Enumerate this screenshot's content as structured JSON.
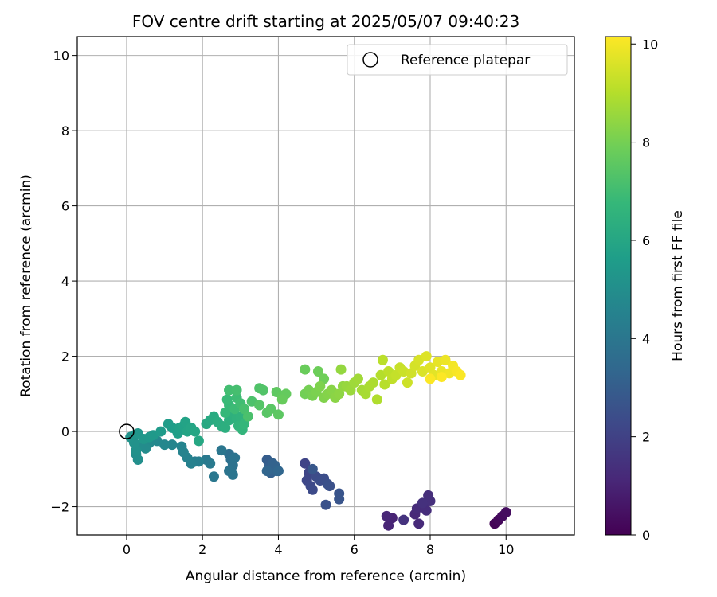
{
  "chart_data": {
    "type": "scatter",
    "title": "FOV centre drift starting at 2025/05/07 09:40:23",
    "xlabel": "Angular distance from reference (arcmin)",
    "ylabel": "Rotation from reference (arcmin)",
    "xlim": [
      -1.3,
      11.8
    ],
    "ylim": [
      -2.75,
      10.5
    ],
    "xticks": [
      0,
      2,
      4,
      6,
      8,
      10
    ],
    "xtick_labels": [
      "0",
      "2",
      "4",
      "6",
      "8",
      "10"
    ],
    "yticks": [
      -2,
      0,
      2,
      4,
      6,
      8,
      10
    ],
    "ytick_labels": [
      "−2",
      "0",
      "2",
      "4",
      "6",
      "8",
      "10"
    ],
    "grid": true,
    "legend": {
      "position": "top-right",
      "entries": [
        "Reference platepar"
      ]
    },
    "reference_point": {
      "x": 0,
      "y": 0,
      "label": "Reference platepar"
    },
    "colorbar": {
      "label": "Hours from first FF file",
      "colormap": "viridis",
      "range": [
        0,
        10.15
      ],
      "ticks": [
        0,
        2,
        4,
        6,
        8,
        10
      ],
      "tick_labels": [
        "0",
        "2",
        "4",
        "6",
        "8",
        "10"
      ]
    },
    "colormap_stops": [
      "#440154",
      "#482878",
      "#3e4989",
      "#31688e",
      "#26828e",
      "#1f9e89",
      "#35b779",
      "#6ece58",
      "#b5de2b",
      "#fde725"
    ],
    "points": [
      [
        9.7,
        -2.45,
        0.1
      ],
      [
        9.8,
        -2.35,
        0.2
      ],
      [
        9.9,
        -2.25,
        0.3
      ],
      [
        10.0,
        -2.15,
        0.35
      ],
      [
        7.0,
        -2.3,
        1.0
      ],
      [
        6.9,
        -2.5,
        1.05
      ],
      [
        6.85,
        -2.25,
        1.1
      ],
      [
        7.6,
        -2.2,
        1.15
      ],
      [
        7.7,
        -2.45,
        1.2
      ],
      [
        7.65,
        -2.05,
        1.25
      ],
      [
        7.9,
        -2.1,
        1.3
      ],
      [
        7.95,
        -1.7,
        1.35
      ],
      [
        8.0,
        -1.85,
        1.4
      ],
      [
        7.8,
        -1.9,
        1.45
      ],
      [
        7.3,
        -2.35,
        1.5
      ],
      [
        4.7,
        -0.85,
        2.1
      ],
      [
        4.8,
        -1.1,
        2.15
      ],
      [
        4.75,
        -1.3,
        2.2
      ],
      [
        4.85,
        -1.45,
        2.25
      ],
      [
        4.9,
        -1.55,
        2.3
      ],
      [
        5.0,
        -1.2,
        2.35
      ],
      [
        5.1,
        -1.3,
        2.4
      ],
      [
        5.2,
        -1.25,
        2.45
      ],
      [
        5.3,
        -1.4,
        2.5
      ],
      [
        5.35,
        -1.45,
        2.55
      ],
      [
        5.25,
        -1.95,
        2.6
      ],
      [
        5.6,
        -1.65,
        2.65
      ],
      [
        5.6,
        -1.8,
        2.7
      ],
      [
        4.9,
        -1.0,
        2.75
      ],
      [
        3.7,
        -0.75,
        3.0
      ],
      [
        3.75,
        -0.95,
        3.05
      ],
      [
        3.8,
        -1.1,
        3.1
      ],
      [
        3.85,
        -0.85,
        3.15
      ],
      [
        3.9,
        -0.9,
        3.2
      ],
      [
        3.95,
        -1.05,
        3.25
      ],
      [
        3.7,
        -1.05,
        3.3
      ],
      [
        4.0,
        -1.05,
        3.35
      ],
      [
        2.7,
        -0.6,
        3.7
      ],
      [
        2.75,
        -0.75,
        3.75
      ],
      [
        2.8,
        -0.9,
        3.8
      ],
      [
        2.85,
        -0.7,
        3.85
      ],
      [
        2.7,
        -1.05,
        3.9
      ],
      [
        2.8,
        -1.15,
        3.95
      ],
      [
        2.5,
        -0.5,
        4.0
      ],
      [
        2.3,
        -1.2,
        4.05
      ],
      [
        2.1,
        -0.75,
        4.1
      ],
      [
        2.2,
        -0.85,
        4.15
      ],
      [
        1.8,
        -0.8,
        4.2
      ],
      [
        1.9,
        -0.8,
        4.4
      ],
      [
        1.7,
        -0.85,
        4.45
      ],
      [
        1.6,
        -0.7,
        4.5
      ],
      [
        1.5,
        -0.55,
        4.55
      ],
      [
        1.45,
        -0.4,
        4.6
      ],
      [
        1.2,
        -0.35,
        4.65
      ],
      [
        1.0,
        -0.35,
        4.7
      ],
      [
        0.8,
        -0.25,
        4.75
      ],
      [
        0.6,
        -0.3,
        4.8
      ],
      [
        0.55,
        -0.35,
        4.85
      ],
      [
        0.5,
        -0.45,
        4.9
      ],
      [
        0.3,
        -0.4,
        4.95
      ],
      [
        0.25,
        -0.6,
        5.0
      ],
      [
        0.3,
        -0.75,
        5.05
      ],
      [
        0.25,
        -0.5,
        5.1
      ],
      [
        0.2,
        -0.3,
        5.15
      ],
      [
        0.1,
        -0.15,
        5.2
      ],
      [
        0.2,
        -0.1,
        5.25
      ],
      [
        0.3,
        -0.05,
        5.3
      ],
      [
        0.45,
        -0.2,
        5.35
      ],
      [
        0.6,
        -0.15,
        5.4
      ],
      [
        0.7,
        -0.1,
        5.45
      ],
      [
        0.9,
        0.0,
        5.5
      ],
      [
        1.1,
        0.2,
        5.55
      ],
      [
        1.2,
        0.1,
        5.6
      ],
      [
        1.3,
        0.05,
        5.65
      ],
      [
        1.35,
        -0.05,
        5.7
      ],
      [
        1.4,
        0.1,
        5.75
      ],
      [
        1.5,
        0.15,
        5.8
      ],
      [
        1.55,
        0.25,
        5.85
      ],
      [
        1.6,
        0.0,
        5.9
      ],
      [
        1.7,
        0.1,
        5.95
      ],
      [
        1.8,
        0.0,
        6.0
      ],
      [
        1.9,
        -0.25,
        6.05
      ],
      [
        2.1,
        0.2,
        6.1
      ],
      [
        2.2,
        0.3,
        6.15
      ],
      [
        2.3,
        0.4,
        6.2
      ],
      [
        2.4,
        0.25,
        6.25
      ],
      [
        2.5,
        0.15,
        6.3
      ],
      [
        2.6,
        0.1,
        6.35
      ],
      [
        2.7,
        0.3,
        6.4
      ],
      [
        2.8,
        0.5,
        6.45
      ],
      [
        2.9,
        0.35,
        6.5
      ],
      [
        3.0,
        0.4,
        6.55
      ],
      [
        2.95,
        0.15,
        6.6
      ],
      [
        3.05,
        0.05,
        6.65
      ],
      [
        3.1,
        0.2,
        6.7
      ],
      [
        2.6,
        0.5,
        6.75
      ],
      [
        2.7,
        0.7,
        6.8
      ],
      [
        2.65,
        0.85,
        6.85
      ],
      [
        2.85,
        0.6,
        6.9
      ],
      [
        2.9,
        0.9,
        6.95
      ],
      [
        3.0,
        0.75,
        7.0
      ],
      [
        2.7,
        1.1,
        7.05
      ],
      [
        2.9,
        1.1,
        7.1
      ],
      [
        3.1,
        0.6,
        7.15
      ],
      [
        3.2,
        0.4,
        7.2
      ],
      [
        3.3,
        0.8,
        7.25
      ],
      [
        3.5,
        1.15,
        7.3
      ],
      [
        3.6,
        1.1,
        7.35
      ],
      [
        3.5,
        0.7,
        7.4
      ],
      [
        3.7,
        0.5,
        7.45
      ],
      [
        3.8,
        0.6,
        7.5
      ],
      [
        4.0,
        0.45,
        7.55
      ],
      [
        3.95,
        1.05,
        7.6
      ],
      [
        4.1,
        0.95,
        7.65
      ],
      [
        4.2,
        1.0,
        7.7
      ],
      [
        4.1,
        0.85,
        7.75
      ],
      [
        4.7,
        1.65,
        7.8
      ],
      [
        5.05,
        1.6,
        7.85
      ],
      [
        5.2,
        1.4,
        7.9
      ],
      [
        4.7,
        1.0,
        7.95
      ],
      [
        4.8,
        1.1,
        8.0
      ],
      [
        4.9,
        0.95,
        8.05
      ],
      [
        5.0,
        1.05,
        8.1
      ],
      [
        5.1,
        1.2,
        8.15
      ],
      [
        5.2,
        0.9,
        8.2
      ],
      [
        5.3,
        1.0,
        8.25
      ],
      [
        5.4,
        1.1,
        8.3
      ],
      [
        5.5,
        0.9,
        8.35
      ],
      [
        5.6,
        1.0,
        8.4
      ],
      [
        5.7,
        1.2,
        8.45
      ],
      [
        5.65,
        1.65,
        8.5
      ],
      [
        5.8,
        1.2,
        8.55
      ],
      [
        5.9,
        1.1,
        8.6
      ],
      [
        6.0,
        1.3,
        8.65
      ],
      [
        6.1,
        1.4,
        8.7
      ],
      [
        6.2,
        1.1,
        8.75
      ],
      [
        6.3,
        1.0,
        8.8
      ],
      [
        6.4,
        1.2,
        8.85
      ],
      [
        6.5,
        1.3,
        8.9
      ],
      [
        6.6,
        0.85,
        8.95
      ],
      [
        6.7,
        1.5,
        9.0
      ],
      [
        6.8,
        1.25,
        9.05
      ],
      [
        6.75,
        1.9,
        9.1
      ],
      [
        6.9,
        1.6,
        9.15
      ],
      [
        7.0,
        1.4,
        9.2
      ],
      [
        7.1,
        1.5,
        9.25
      ],
      [
        7.2,
        1.7,
        9.3
      ],
      [
        7.3,
        1.6,
        9.35
      ],
      [
        7.4,
        1.3,
        9.4
      ],
      [
        7.5,
        1.55,
        9.45
      ],
      [
        7.6,
        1.75,
        9.5
      ],
      [
        7.7,
        1.9,
        9.55
      ],
      [
        7.8,
        1.6,
        9.6
      ],
      [
        7.9,
        2.0,
        9.65
      ],
      [
        8.0,
        1.7,
        9.7
      ],
      [
        8.1,
        1.5,
        9.75
      ],
      [
        8.2,
        1.85,
        9.8
      ],
      [
        8.3,
        1.6,
        9.85
      ],
      [
        8.4,
        1.9,
        9.9
      ],
      [
        8.5,
        1.55,
        9.95
      ],
      [
        8.6,
        1.75,
        10.0
      ],
      [
        8.7,
        1.6,
        10.05
      ],
      [
        8.8,
        1.5,
        10.1
      ],
      [
        8.0,
        1.4,
        10.12
      ],
      [
        8.3,
        1.45,
        10.14
      ]
    ]
  }
}
